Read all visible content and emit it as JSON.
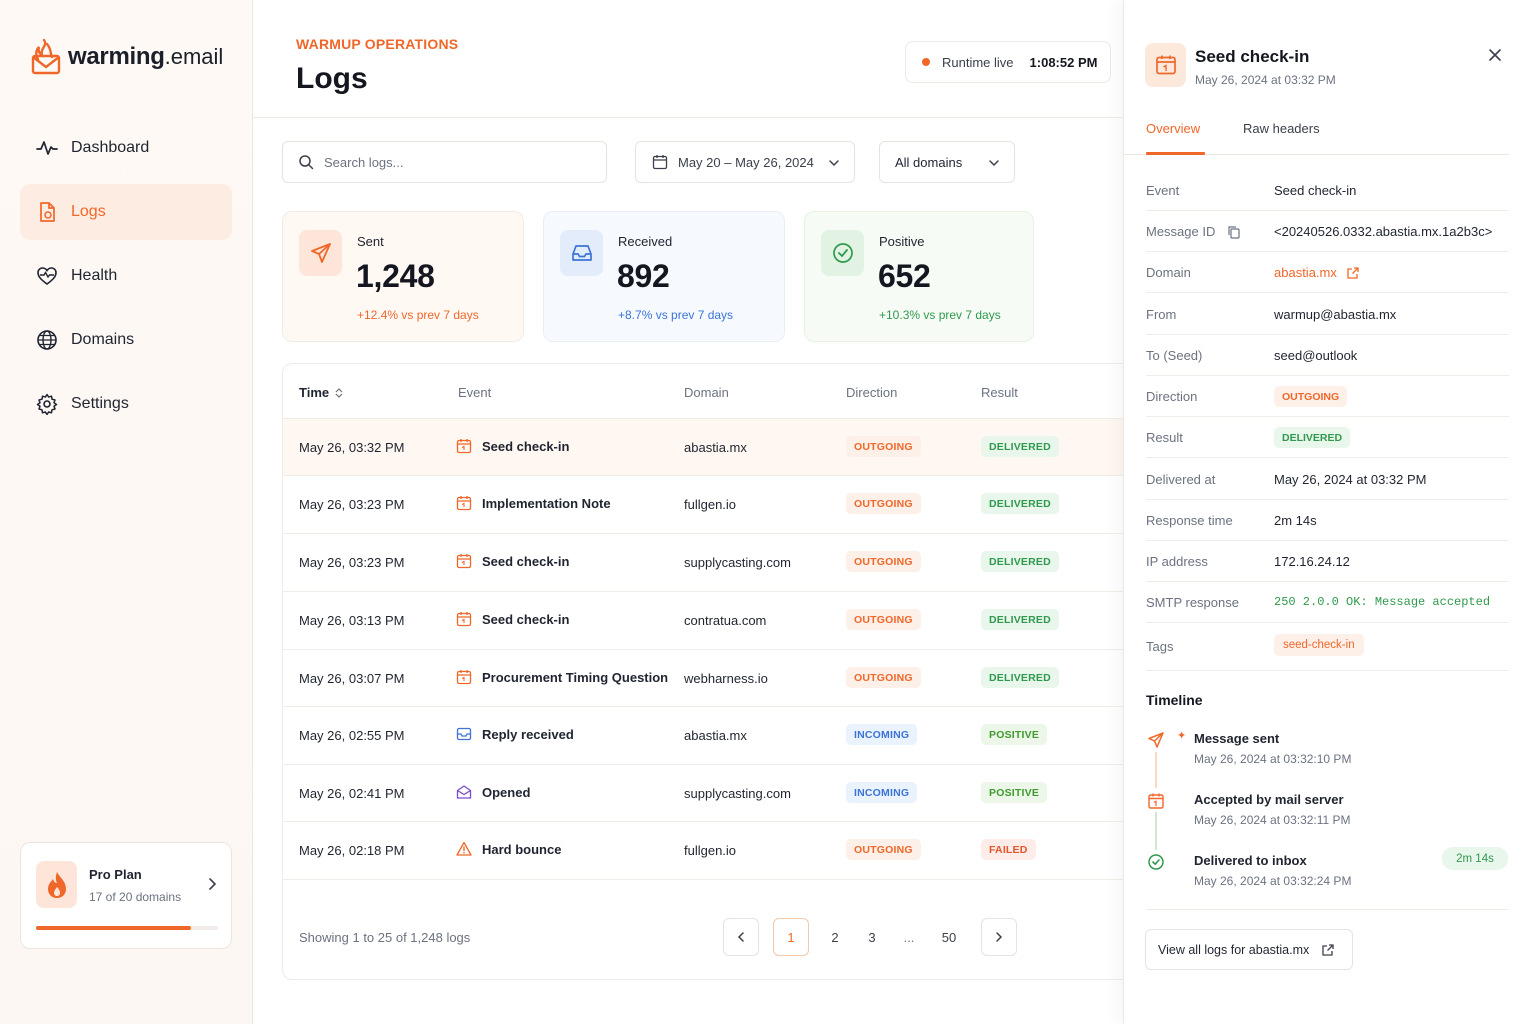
{
  "brand": {
    "name_bold": "warming",
    "name_rest": ".email"
  },
  "sidebar": {
    "items": [
      {
        "label": "Dashboard",
        "icon": "activity-icon"
      },
      {
        "label": "Logs",
        "icon": "file-icon",
        "active": true
      },
      {
        "label": "Health",
        "icon": "heart-pulse-icon"
      },
      {
        "label": "Domains",
        "icon": "globe-icon"
      },
      {
        "label": "Settings",
        "icon": "gear-icon"
      }
    ],
    "plan": {
      "name": "Pro Plan",
      "usage": "17 of 20 domains",
      "used": 17,
      "total": 20
    }
  },
  "header": {
    "eyebrow": "WARMUP OPERATIONS",
    "title": "Logs",
    "runtime_label": "Runtime live",
    "runtime_time": "1:08:52 PM"
  },
  "filters": {
    "search_placeholder": "Search logs...",
    "date_range": "May 20 – May 26, 2024",
    "domain_select": "All domains"
  },
  "stats": [
    {
      "label": "Sent",
      "value": "1,248",
      "delta": "+12.4% vs prev 7 days"
    },
    {
      "label": "Received",
      "value": "892",
      "delta": "+8.7% vs prev 7 days"
    },
    {
      "label": "Positive",
      "value": "652",
      "delta": "+10.3% vs prev 7 days"
    }
  ],
  "colors": {
    "accent": "#f0672a",
    "incoming": "#3b74d6",
    "success": "#2f9a4d",
    "danger": "#e2552d"
  },
  "table": {
    "columns": [
      "Time",
      "Event",
      "Domain",
      "Direction",
      "Result"
    ],
    "rows": [
      {
        "time": "May 26, 03:32 PM",
        "event": "Seed check-in",
        "icon": "calendar-icon",
        "domain": "abastia.mx",
        "direction": "OUTGOING",
        "result": "DELIVERED"
      },
      {
        "time": "May 26, 03:23 PM",
        "event": "Implementation Note",
        "icon": "calendar-icon",
        "domain": "fullgen.io",
        "direction": "OUTGOING",
        "result": "DELIVERED"
      },
      {
        "time": "May 26, 03:23 PM",
        "event": "Seed check-in",
        "icon": "calendar-icon",
        "domain": "supplycasting.com",
        "direction": "OUTGOING",
        "result": "DELIVERED"
      },
      {
        "time": "May 26, 03:13 PM",
        "event": "Seed check-in",
        "icon": "calendar-icon",
        "domain": "contratua.com",
        "direction": "OUTGOING",
        "result": "DELIVERED"
      },
      {
        "time": "May 26, 03:07 PM",
        "event": "Procurement Timing Question",
        "icon": "calendar-icon",
        "domain": "webharness.io",
        "direction": "OUTGOING",
        "result": "DELIVERED"
      },
      {
        "time": "May 26, 02:55 PM",
        "event": "Reply received",
        "icon": "inbox-icon",
        "domain": "abastia.mx",
        "direction": "INCOMING",
        "result": "POSITIVE"
      },
      {
        "time": "May 26, 02:41 PM",
        "event": "Opened",
        "icon": "open-mail-icon",
        "domain": "supplycasting.com",
        "direction": "INCOMING",
        "result": "POSITIVE"
      },
      {
        "time": "May 26, 02:18 PM",
        "event": "Hard bounce",
        "icon": "warning-icon",
        "domain": "fullgen.io",
        "direction": "OUTGOING",
        "result": "FAILED"
      }
    ],
    "footer": "Showing 1 to 25 of 1,248 logs",
    "pages": [
      "1",
      "2",
      "3",
      "...",
      "50"
    ]
  },
  "panel": {
    "title": "Seed check-in",
    "subtitle": "May 26, 2024 at 03:32 PM",
    "tabs": [
      "Overview",
      "Raw headers"
    ],
    "fields": {
      "event": {
        "k": "Event",
        "v": "Seed check-in"
      },
      "message_id": {
        "k": "Message ID",
        "v": "<20240526.0332.abastia.mx.1a2b3c>"
      },
      "domain": {
        "k": "Domain",
        "v": "abastia.mx"
      },
      "from": {
        "k": "From",
        "v": "warmup@abastia.mx"
      },
      "to": {
        "k": "To (Seed)",
        "v": "seed@outlook"
      },
      "direction": {
        "k": "Direction",
        "v": "OUTGOING"
      },
      "result": {
        "k": "Result",
        "v": "DELIVERED"
      },
      "delivered_at": {
        "k": "Delivered at",
        "v": "May 26, 2024 at 03:32 PM"
      },
      "response_time": {
        "k": "Response time",
        "v": "2m 14s"
      },
      "ip": {
        "k": "IP address",
        "v": "172.16.24.12"
      },
      "smtp": {
        "k": "SMTP response",
        "v": "250 2.0.0 OK: Message accepted"
      },
      "tags": {
        "k": "Tags",
        "v": "seed-check-in"
      }
    },
    "timeline_title": "Timeline",
    "timeline": [
      {
        "name": "Message sent",
        "time": "May 26, 2024 at 03:32:10 PM"
      },
      {
        "name": "Accepted by mail server",
        "time": "May 26, 2024 at 03:32:11 PM"
      },
      {
        "name": "Delivered to inbox",
        "time": "May 26, 2024 at 03:32:24 PM",
        "duration": "2m 14s"
      }
    ],
    "view_all": "View all logs for abastia.mx"
  }
}
